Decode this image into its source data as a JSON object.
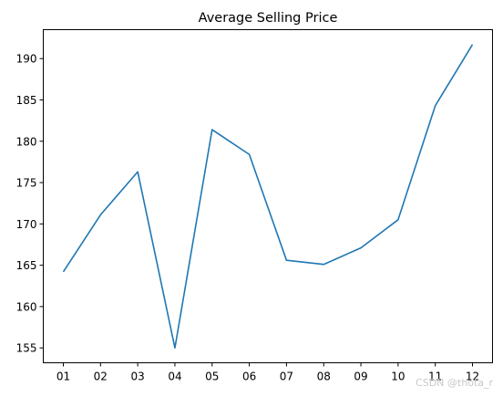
{
  "chart_data": {
    "type": "line",
    "title": "Average Selling Price",
    "xlabel": "",
    "ylabel": "",
    "categories": [
      "01",
      "02",
      "03",
      "04",
      "05",
      "06",
      "07",
      "08",
      "09",
      "10",
      "11",
      "12"
    ],
    "series": [
      {
        "values": [
          164.2,
          171.1,
          176.3,
          155.0,
          181.4,
          178.4,
          165.6,
          165.1,
          167.1,
          170.5,
          184.3,
          191.7
        ],
        "color": "#1f77b4"
      }
    ],
    "ylim": [
      153.2,
      193.5
    ],
    "yticks": [
      155,
      160,
      165,
      170,
      175,
      180,
      185,
      190
    ],
    "grid": false,
    "legend": "none"
  },
  "watermark": "CSDN @thota_r"
}
